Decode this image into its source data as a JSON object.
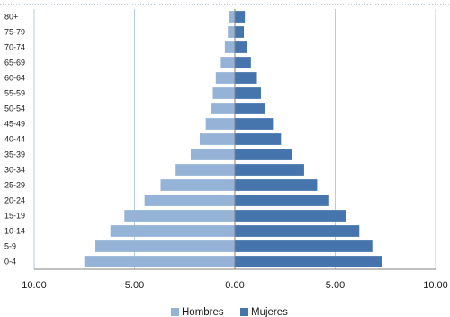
{
  "chart_data": {
    "type": "bar",
    "orientation": "horizontal",
    "diverging": true,
    "categories": [
      "80+",
      "75-79",
      "70-74",
      "65-69",
      "60-64",
      "55-59",
      "50-54",
      "45-49",
      "40-44",
      "35-39",
      "30-34",
      "25-29",
      "20-24",
      "15-19",
      "10-14",
      "5-9",
      "0-4"
    ],
    "series": [
      {
        "name": "Hombres",
        "color": "#95b3d7",
        "direction": "left",
        "values": [
          0.3,
          0.35,
          0.5,
          0.7,
          0.95,
          1.1,
          1.2,
          1.45,
          1.75,
          2.2,
          2.95,
          3.7,
          4.5,
          5.5,
          6.2,
          6.95,
          7.5
        ]
      },
      {
        "name": "Mujeres",
        "color": "#4674ad",
        "direction": "right",
        "values": [
          0.5,
          0.45,
          0.6,
          0.8,
          1.1,
          1.3,
          1.5,
          1.9,
          2.3,
          2.85,
          3.45,
          4.1,
          4.7,
          5.55,
          6.2,
          6.85,
          7.35
        ]
      }
    ],
    "xlim": [
      -10,
      10
    ],
    "xticks": [
      -10,
      -5,
      0,
      5,
      10
    ],
    "xtick_labels": [
      "10.00",
      "5.00",
      "0.00",
      "5.00",
      "10.00"
    ],
    "title": "",
    "xlabel": "",
    "ylabel": "",
    "grid": "vertical",
    "legend": "bottom"
  }
}
